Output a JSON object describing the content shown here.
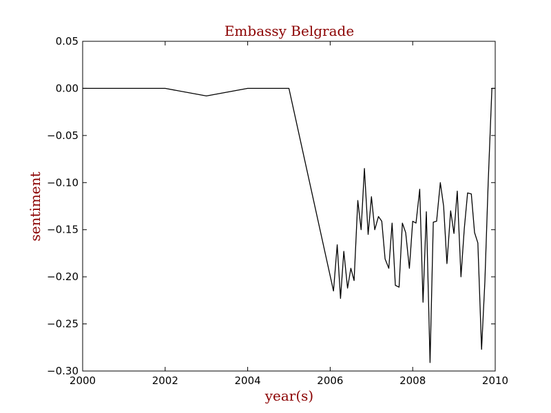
{
  "chart_data": {
    "type": "line",
    "title": "Embassy Belgrade",
    "xlabel": "year(s)",
    "ylabel": "sentiment",
    "xlim": [
      2000,
      2010
    ],
    "ylim": [
      -0.3,
      0.05
    ],
    "xticks": [
      2000,
      2002,
      2004,
      2006,
      2008,
      2010
    ],
    "xtick_labels": [
      "2000",
      "2002",
      "2004",
      "2006",
      "2008",
      "2010"
    ],
    "yticks": [
      0.05,
      0.0,
      -0.05,
      -0.1,
      -0.15,
      -0.2,
      -0.25,
      -0.3
    ],
    "ytick_labels": [
      "0.05",
      "0.00",
      "−0.05",
      "−0.10",
      "−0.15",
      "−0.20",
      "−0.25",
      "−0.30"
    ],
    "grid": false,
    "legend": "none",
    "series": [
      {
        "color": "#000000",
        "x": [
          2000.0,
          2002.0,
          2003.0,
          2004.0,
          2005.0,
          2006.08,
          2006.17,
          2006.25,
          2006.33,
          2006.42,
          2006.5,
          2006.58,
          2006.67,
          2006.75,
          2006.83,
          2006.92,
          2007.0,
          2007.08,
          2007.17,
          2007.25,
          2007.33,
          2007.42,
          2007.5,
          2007.58,
          2007.67,
          2007.75,
          2007.83,
          2007.92,
          2008.0,
          2008.08,
          2008.17,
          2008.25,
          2008.33,
          2008.42,
          2008.5,
          2008.58,
          2008.67,
          2008.75,
          2008.83,
          2008.92,
          2009.0,
          2009.08,
          2009.17,
          2009.25,
          2009.33,
          2009.42,
          2009.5,
          2009.58,
          2009.67,
          2009.75,
          2009.83,
          2009.92,
          2010.0
        ],
        "y": [
          0.0,
          0.0,
          -0.008,
          0.0,
          0.0,
          -0.215,
          -0.166,
          -0.223,
          -0.173,
          -0.212,
          -0.191,
          -0.204,
          -0.119,
          -0.15,
          -0.085,
          -0.155,
          -0.115,
          -0.15,
          -0.136,
          -0.141,
          -0.181,
          -0.191,
          -0.143,
          -0.209,
          -0.211,
          -0.143,
          -0.153,
          -0.191,
          -0.141,
          -0.143,
          -0.107,
          -0.227,
          -0.131,
          -0.291,
          -0.142,
          -0.141,
          -0.1,
          -0.125,
          -0.186,
          -0.13,
          -0.154,
          -0.109,
          -0.2,
          -0.149,
          -0.111,
          -0.112,
          -0.153,
          -0.164,
          -0.277,
          -0.205,
          -0.1,
          0.0,
          0.0
        ]
      }
    ]
  }
}
